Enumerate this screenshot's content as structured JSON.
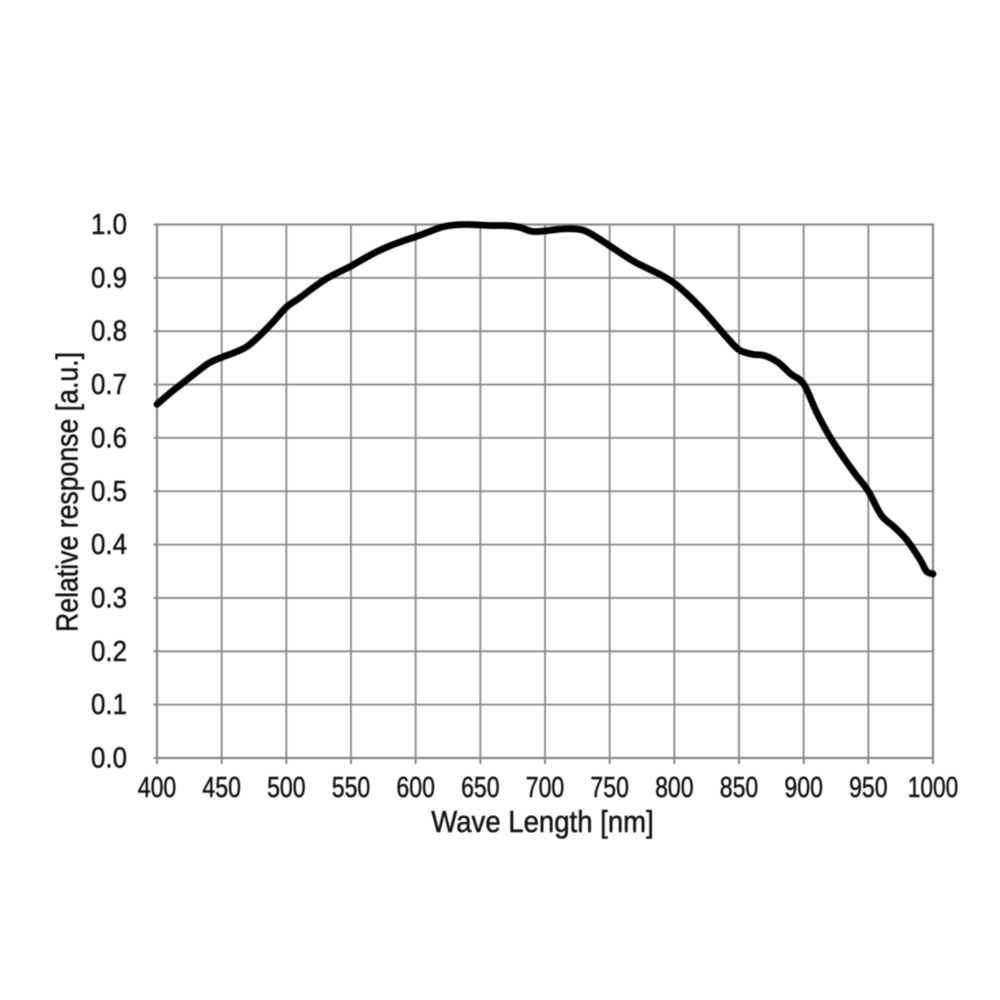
{
  "figure": {
    "background": "#ffffff",
    "text_color": "#141414",
    "grid_color": "#888888",
    "curve_color": "#000000"
  },
  "chart_data": {
    "type": "line",
    "title": "",
    "xlabel": "Wave Length [nm]",
    "ylabel": "Relative response [a.u.]",
    "xlim": [
      400,
      1000
    ],
    "ylim": [
      0.0,
      1.0
    ],
    "x_tick_step": 50,
    "y_tick_step": 0.1,
    "x_ticks": [
      400,
      450,
      500,
      550,
      600,
      650,
      700,
      750,
      800,
      850,
      900,
      950,
      1000
    ],
    "y_ticks": [
      "0.0",
      "0.1",
      "0.2",
      "0.3",
      "0.4",
      "0.5",
      "0.6",
      "0.7",
      "0.8",
      "0.9",
      "1.0"
    ],
    "grid": true,
    "legend_position": "none",
    "series": [
      {
        "name": "relative-response",
        "color": "#000000",
        "x": [
          400,
          410,
          420,
          430,
          440,
          450,
          460,
          470,
          480,
          490,
          500,
          510,
          520,
          530,
          540,
          550,
          560,
          570,
          580,
          590,
          600,
          610,
          620,
          630,
          640,
          650,
          660,
          670,
          680,
          690,
          700,
          710,
          720,
          730,
          740,
          750,
          760,
          770,
          780,
          790,
          800,
          810,
          820,
          830,
          840,
          850,
          860,
          870,
          880,
          890,
          900,
          910,
          920,
          930,
          940,
          950,
          960,
          970,
          980,
          990,
          995,
          1000
        ],
        "y": [
          0.663,
          0.684,
          0.703,
          0.722,
          0.74,
          0.751,
          0.76,
          0.772,
          0.793,
          0.818,
          0.845,
          0.862,
          0.88,
          0.897,
          0.91,
          0.922,
          0.936,
          0.949,
          0.96,
          0.969,
          0.977,
          0.986,
          0.995,
          0.999,
          1.0,
          0.999,
          0.998,
          0.998,
          0.995,
          0.987,
          0.988,
          0.991,
          0.992,
          0.989,
          0.976,
          0.96,
          0.944,
          0.929,
          0.917,
          0.905,
          0.89,
          0.869,
          0.845,
          0.818,
          0.79,
          0.765,
          0.757,
          0.754,
          0.742,
          0.72,
          0.701,
          0.648,
          0.603,
          0.566,
          0.532,
          0.5,
          0.455,
          0.433,
          0.408,
          0.372,
          0.35,
          0.345
        ]
      }
    ]
  }
}
